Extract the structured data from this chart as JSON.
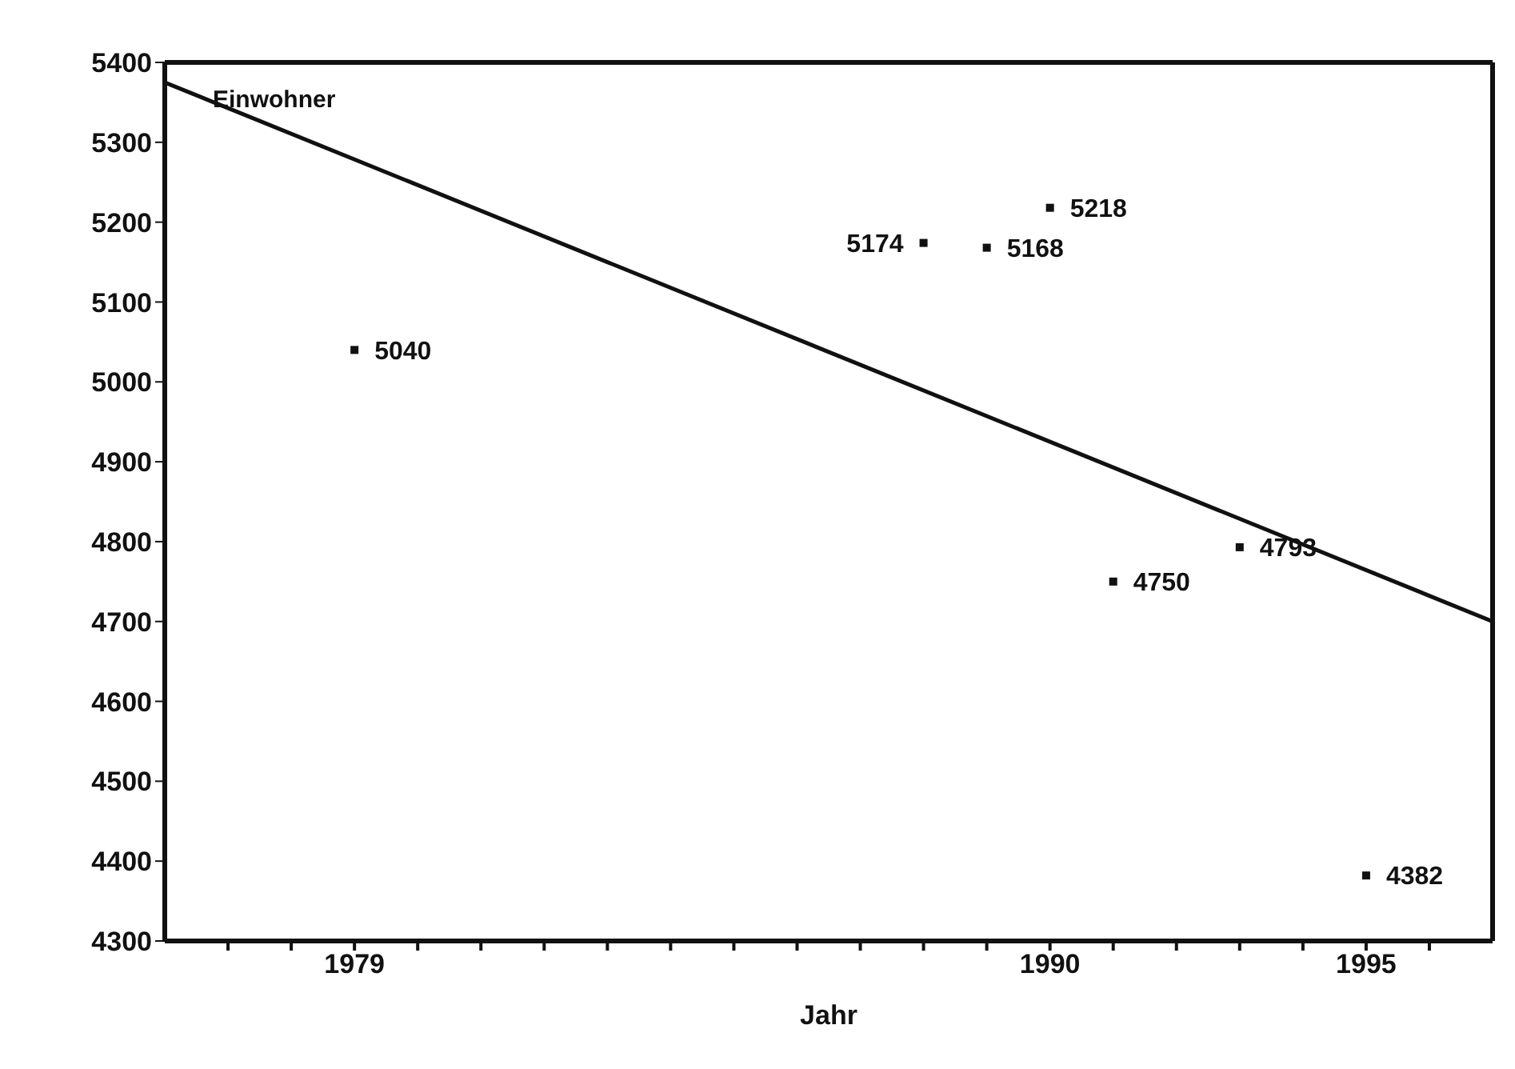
{
  "chart_data": {
    "type": "scatter",
    "xlabel": "Jahr",
    "ylabel": "Einwohner",
    "x": [
      1979,
      1988,
      1989,
      1990,
      1991,
      1993,
      1995
    ],
    "series": [
      {
        "color": "#111111",
        "values": [
          5040,
          5174,
          5168,
          5218,
          4750,
          4793,
          4382
        ],
        "value_labels": [
          "5040",
          "5174",
          "5168",
          "5218",
          "4750",
          "4793",
          "4382"
        ]
      },
      {
        "type": "line",
        "color": "#111111",
        "x": [
          1976,
          1997
        ],
        "values": [
          5375,
          4700
        ],
        "marker": "none"
      }
    ],
    "marker": "square",
    "grid": false,
    "legend": false,
    "xlim": [
      1976,
      1997
    ],
    "xticks": [
      {
        "value": 1977,
        "label": null
      },
      {
        "value": 1978,
        "label": null
      },
      1979,
      {
        "value": 1980,
        "label": null
      },
      {
        "value": 1981,
        "label": null
      },
      {
        "value": 1982,
        "label": null
      },
      {
        "value": 1983,
        "label": null
      },
      {
        "value": 1984,
        "label": null
      },
      {
        "value": 1985,
        "label": null
      },
      {
        "value": 1986,
        "label": null
      },
      {
        "value": 1987,
        "label": null
      },
      {
        "value": 1988,
        "label": null
      },
      {
        "value": 1989,
        "label": null
      },
      1990,
      {
        "value": 1991,
        "label": null
      },
      {
        "value": 1992,
        "label": null
      },
      {
        "value": 1993,
        "label": null
      },
      {
        "value": 1994,
        "label": null
      },
      1995,
      {
        "value": 1996,
        "label": null
      }
    ],
    "ylim": [
      4300,
      5400
    ],
    "yticks": [
      4300,
      4400,
      4500,
      4600,
      4700,
      4800,
      4900,
      5000,
      5100,
      5200,
      5300,
      5400
    ]
  }
}
